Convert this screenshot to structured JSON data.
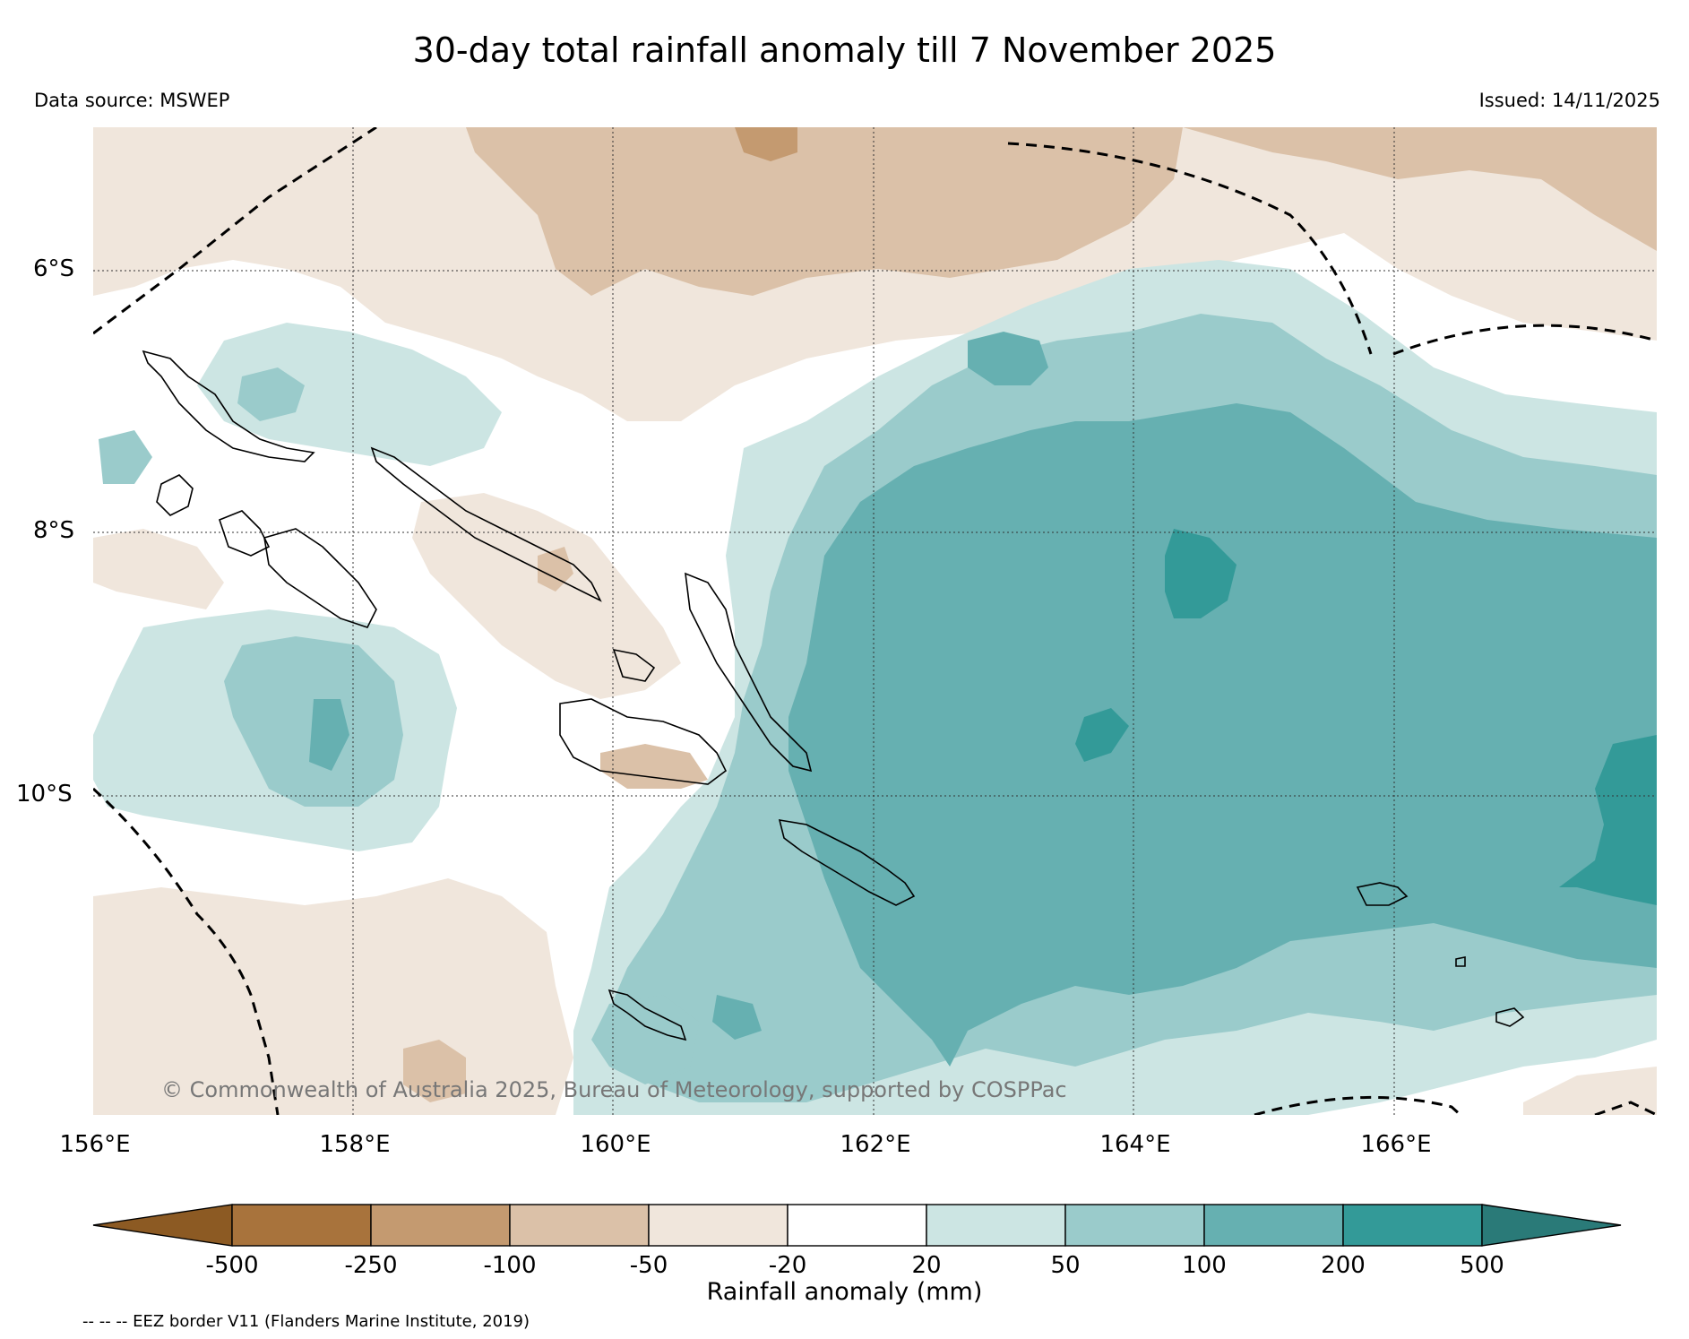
{
  "title": "30-day total rainfall anomaly till 7 November 2025",
  "data_source": "Data source: MSWEP",
  "issued": "Issued: 14/11/2025",
  "copyright": "© Commonwealth of Australia 2025, Bureau of Meteorology, supported by COSPPac",
  "map": {
    "lat_labels": [
      "6°S",
      "8°S",
      "10°S"
    ],
    "lon_labels": [
      "156°E",
      "158°E",
      "160°E",
      "162°E",
      "164°E",
      "166°E"
    ]
  },
  "colorbar": {
    "label": "Rainfall anomaly (mm)",
    "ticks": [
      "-500",
      "-250",
      "-100",
      "-50",
      "-20",
      "20",
      "50",
      "100",
      "200",
      "500"
    ],
    "colors": [
      "#8c5a23",
      "#a8733c",
      "#c49a70",
      "#dbc1a8",
      "#f0e6dc",
      "#ffffff",
      "#cce5e3",
      "#9acbcb",
      "#66b0b1",
      "#339a98",
      "#2a7a78"
    ]
  },
  "legend_note": "-- -- -- EEZ border V11 (Flanders Marine Institute, 2019)"
}
